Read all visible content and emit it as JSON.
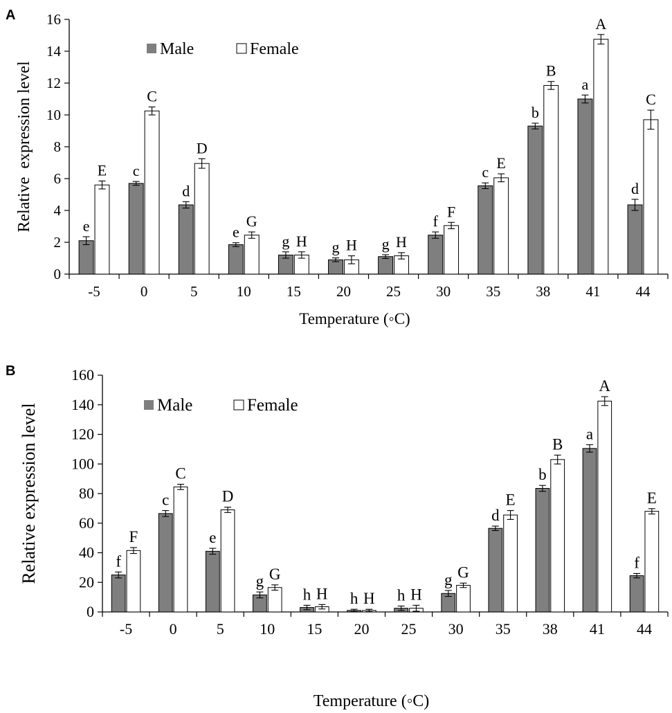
{
  "chart_data": [
    {
      "type": "bar",
      "panel_label": "A",
      "categories": [
        "-5",
        "0",
        "5",
        "10",
        "15",
        "20",
        "25",
        "30",
        "35",
        "38",
        "41",
        "44"
      ],
      "xlabel": "Temperature (◦C)",
      "ylabel": "Relative  expression level",
      "ylim": [
        0,
        16
      ],
      "yticks": [
        "0",
        "2",
        "4",
        "6",
        "8",
        "10",
        "12",
        "14",
        "16"
      ],
      "legend_position": "top-left",
      "grid": false,
      "series": [
        {
          "name": "Male",
          "color": "#7f7f7f",
          "values": [
            2.1,
            5.7,
            4.35,
            1.85,
            1.2,
            0.9,
            1.1,
            2.45,
            5.55,
            9.3,
            11.0,
            4.35
          ],
          "errors": [
            0.25,
            0.12,
            0.2,
            0.12,
            0.2,
            0.12,
            0.12,
            0.2,
            0.18,
            0.18,
            0.25,
            0.35
          ],
          "labels": [
            "e",
            "c",
            "d",
            "e",
            "g",
            "g",
            "g",
            "f",
            "c",
            "b",
            "a",
            "d"
          ]
        },
        {
          "name": "Female",
          "color": "#ffffff",
          "values": [
            5.6,
            10.25,
            6.95,
            2.45,
            1.2,
            0.9,
            1.15,
            3.05,
            6.05,
            11.85,
            14.75,
            9.7
          ],
          "errors": [
            0.25,
            0.25,
            0.3,
            0.2,
            0.2,
            0.25,
            0.2,
            0.2,
            0.25,
            0.25,
            0.3,
            0.6
          ],
          "labels": [
            "E",
            "C",
            "D",
            "G",
            "H",
            "H",
            "H",
            "F",
            "E",
            "B",
            "A",
            "C"
          ]
        }
      ]
    },
    {
      "type": "bar",
      "panel_label": "B",
      "categories": [
        "-5",
        "0",
        "5",
        "10",
        "15",
        "20",
        "25",
        "30",
        "35",
        "38",
        "41",
        "44"
      ],
      "xlabel": "Temperature (◦C)",
      "ylabel": "Relative expression level",
      "ylim": [
        0,
        160
      ],
      "yticks": [
        "0",
        "20",
        "40",
        "60",
        "80",
        "100",
        "120",
        "140",
        "160"
      ],
      "legend_position": "top-left",
      "grid": false,
      "series": [
        {
          "name": "Male",
          "color": "#7f7f7f",
          "values": [
            25,
            66.5,
            41,
            11.5,
            3,
            1,
            2.5,
            12.5,
            56.5,
            83.5,
            110.5,
            24.5
          ],
          "errors": [
            2,
            2,
            2,
            2,
            1.5,
            0.8,
            1.5,
            2,
            1.5,
            2,
            2.5,
            1.5
          ],
          "labels": [
            "f",
            "c",
            "e",
            "g",
            "h",
            "h",
            "h",
            "g",
            "d",
            "b",
            "a",
            "f"
          ]
        },
        {
          "name": "Female",
          "color": "#ffffff",
          "values": [
            41.5,
            84.5,
            69,
            16.5,
            3.5,
            1,
            2.5,
            18,
            65.5,
            103,
            142.5,
            68
          ],
          "errors": [
            2,
            1.8,
            1.8,
            1.8,
            1.5,
            0.8,
            2,
            1.5,
            3,
            3,
            3,
            1.8
          ],
          "labels": [
            "F",
            "C",
            "D",
            "G",
            "H",
            "H",
            "H",
            "G",
            "E",
            "B",
            "A",
            "E"
          ]
        }
      ]
    }
  ]
}
